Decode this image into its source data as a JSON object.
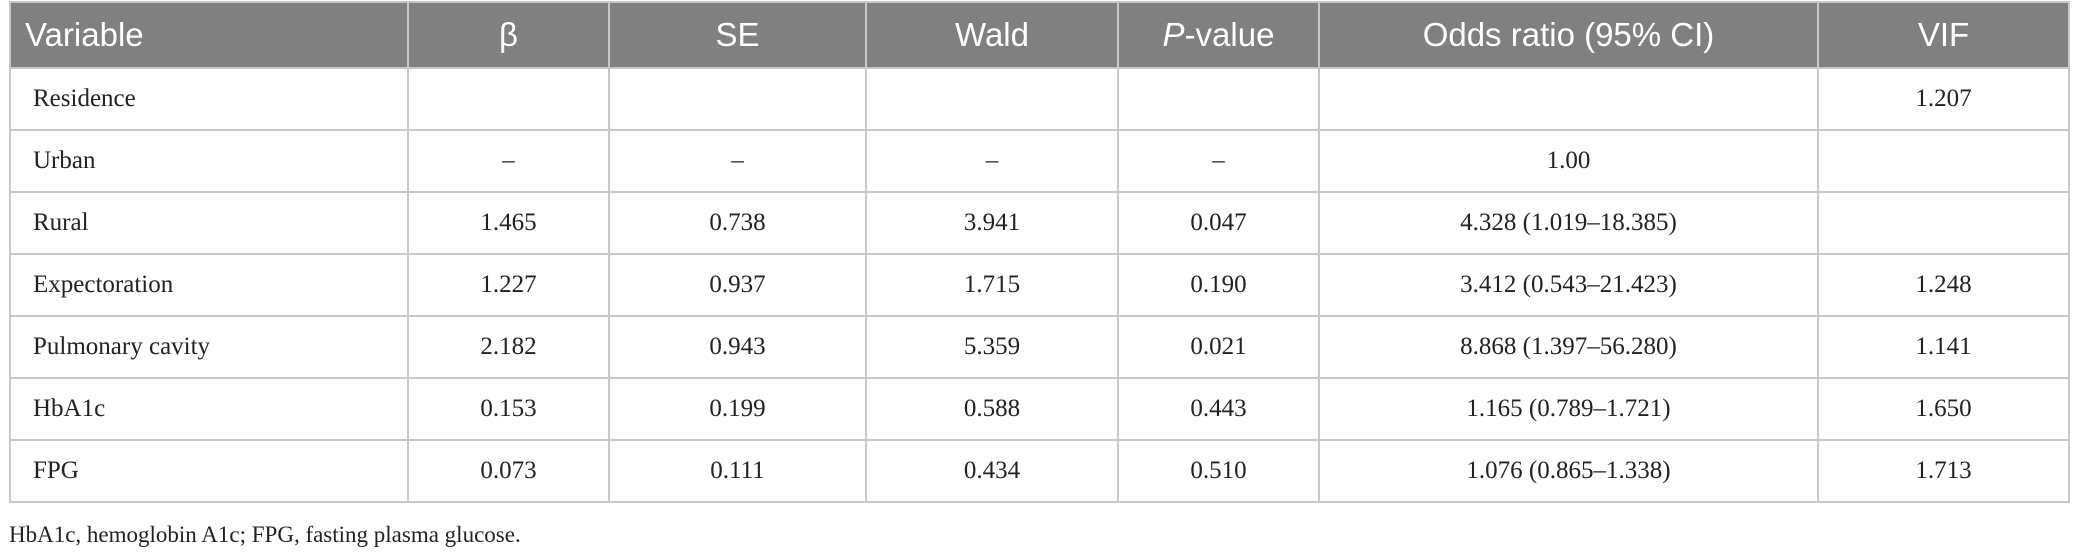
{
  "table": {
    "columns": [
      "Variable",
      "β",
      "SE",
      "Wald",
      {
        "italic": "P",
        "text": "-value"
      },
      "Odds ratio (95% CI)",
      "VIF"
    ],
    "rows": [
      [
        "Residence",
        null,
        null,
        null,
        null,
        null,
        "1.207"
      ],
      [
        "Urban",
        "–",
        "–",
        "–",
        "–",
        "1.00",
        null
      ],
      [
        "Rural",
        "1.465",
        "0.738",
        "3.941",
        "0.047",
        "4.328 (1.019–18.385)",
        null
      ],
      [
        "Expectoration",
        "1.227",
        "0.937",
        "1.715",
        "0.190",
        "3.412 (0.543–21.423)",
        "1.248"
      ],
      [
        "Pulmonary cavity",
        "2.182",
        "0.943",
        "5.359",
        "0.021",
        "8.868 (1.397–56.280)",
        "1.141"
      ],
      [
        "HbA1c",
        "0.153",
        "0.199",
        "0.588",
        "0.443",
        "1.165 (0.789–1.721)",
        "1.650"
      ],
      [
        "FPG",
        "0.073",
        "0.111",
        "0.434",
        "0.510",
        "1.076 (0.865–1.338)",
        "1.713"
      ]
    ],
    "footnote": "HbA1c, hemoglobin A1c; FPG, fasting plasma glucose."
  }
}
